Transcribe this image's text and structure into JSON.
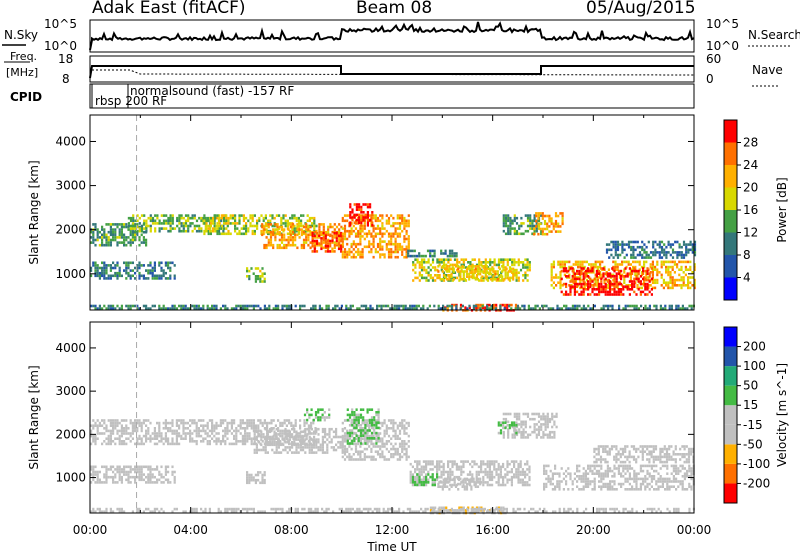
{
  "header": {
    "title": "Adak East (fitACF)",
    "beam": "Beam 08",
    "date": "05/Aug/2015"
  },
  "top_panels": {
    "nsky_label": "N.Sky",
    "nsky_ticks": [
      "10^5",
      "10^0"
    ],
    "nsearch_label": "N.Search",
    "nsearch_ticks": [
      "10^5",
      "10^0"
    ],
    "freq_label": "Freq.",
    "freq_unit": "[MHz]",
    "freq_ticks": [
      "18",
      "8"
    ],
    "nave_label": "Nave",
    "nave_ticks": [
      "60",
      "0"
    ],
    "cpid_label": "CPID",
    "cpid_programs": [
      "rbsp 200 RF",
      "normalsound (fast) -157 RF"
    ]
  },
  "chart_data": [
    {
      "type": "heatmap",
      "title": "",
      "xlabel": "Time UT",
      "ylabel": "Slant Range [km]",
      "x_tick_labels": [
        "00:00",
        "04:00",
        "08:00",
        "12:00",
        "16:00",
        "20:00",
        "00:00"
      ],
      "xlim_hours": [
        0,
        24
      ],
      "y_ticks": [
        1000,
        2000,
        3000,
        4000
      ],
      "ylim": [
        180,
        4600
      ],
      "colorbar": {
        "label": "Power [dB]",
        "ticks": [
          "4",
          "8",
          "12",
          "16",
          "20",
          "24",
          "28"
        ],
        "range": [
          0,
          30
        ],
        "colors": [
          "#0000ff",
          "#2255aa",
          "#33777a",
          "#44a044",
          "#d8d800",
          "#ffb000",
          "#ff7000",
          "#ff0000"
        ]
      },
      "regions": [
        {
          "t0": 0.0,
          "t1": 3.4,
          "r0": 880,
          "r1": 1280,
          "level": 9
        },
        {
          "t0": 0.0,
          "t1": 2.2,
          "r0": 1650,
          "r1": 2150,
          "level": 12
        },
        {
          "t0": 1.5,
          "t1": 5.5,
          "r0": 1950,
          "r1": 2350,
          "level": 14
        },
        {
          "t0": 4.5,
          "t1": 9.0,
          "r0": 1900,
          "r1": 2350,
          "level": 16
        },
        {
          "t0": 6.8,
          "t1": 10.0,
          "r0": 1600,
          "r1": 2150,
          "level": 22
        },
        {
          "t0": 8.8,
          "t1": 10.0,
          "r0": 1500,
          "r1": 1950,
          "level": 26
        },
        {
          "t0": 6.2,
          "t1": 6.9,
          "r0": 850,
          "r1": 1150,
          "level": 15
        },
        {
          "t0": 10.0,
          "t1": 12.7,
          "r0": 1350,
          "r1": 2350,
          "level": 22
        },
        {
          "t0": 10.3,
          "t1": 11.2,
          "r0": 2100,
          "r1": 2600,
          "level": 28
        },
        {
          "t0": 12.6,
          "t1": 14.6,
          "r0": 1400,
          "r1": 1550,
          "level": 10
        },
        {
          "t0": 12.8,
          "t1": 17.5,
          "r0": 850,
          "r1": 1350,
          "level": 17
        },
        {
          "t0": 13.8,
          "t1": 16.8,
          "r0": 850,
          "r1": 1200,
          "level": 19
        },
        {
          "t0": 16.4,
          "t1": 17.9,
          "r0": 1900,
          "r1": 2350,
          "level": 12
        },
        {
          "t0": 17.6,
          "t1": 18.8,
          "r0": 1900,
          "r1": 2400,
          "level": 22
        },
        {
          "t0": 18.3,
          "t1": 24.0,
          "r0": 700,
          "r1": 1300,
          "level": 20
        },
        {
          "t0": 18.7,
          "t1": 22.3,
          "r0": 550,
          "r1": 1150,
          "level": 28
        },
        {
          "t0": 20.5,
          "t1": 24.0,
          "r0": 1350,
          "r1": 1750,
          "level": 8
        },
        {
          "t0": 14.0,
          "t1": 17.0,
          "r0": 200,
          "r1": 320,
          "level": 26
        },
        {
          "t0": 0.0,
          "t1": 24.0,
          "r0": 190,
          "r1": 300,
          "level": 10
        }
      ]
    },
    {
      "type": "heatmap",
      "title": "",
      "xlabel": "Time UT",
      "ylabel": "Slant Range [km]",
      "x_tick_labels": [
        "00:00",
        "04:00",
        "08:00",
        "12:00",
        "16:00",
        "20:00",
        "00:00"
      ],
      "xlim_hours": [
        0,
        24
      ],
      "y_ticks": [
        1000,
        2000,
        3000,
        4000
      ],
      "ylim": [
        180,
        4600
      ],
      "colorbar": {
        "label": "Velocity [m s^-1]",
        "ticks": [
          "-200",
          "-100",
          "-50",
          "-15",
          "15",
          "50",
          "100",
          "200"
        ],
        "range": [
          -250,
          250
        ],
        "colors": [
          "#ff0000",
          "#ff7000",
          "#ffb000",
          "#c0c0c0",
          "#c0c0c0",
          "#44bb44",
          "#22aa77",
          "#2255aa",
          "#0000ff"
        ]
      },
      "regions": [
        {
          "t0": 0.0,
          "t1": 3.4,
          "r0": 880,
          "r1": 1280,
          "level": 0
        },
        {
          "t0": 0.0,
          "t1": 9.0,
          "r0": 1750,
          "r1": 2350,
          "level": 0
        },
        {
          "t0": 6.5,
          "t1": 10.0,
          "r0": 1600,
          "r1": 2150,
          "level": 0
        },
        {
          "t0": 8.5,
          "t1": 9.5,
          "r0": 2300,
          "r1": 2600,
          "level": 30
        },
        {
          "t0": 6.2,
          "t1": 6.9,
          "r0": 850,
          "r1": 1150,
          "level": 0
        },
        {
          "t0": 10.0,
          "t1": 12.7,
          "r0": 1400,
          "r1": 2350,
          "level": 0
        },
        {
          "t0": 10.2,
          "t1": 11.5,
          "r0": 1800,
          "r1": 2600,
          "level": 30
        },
        {
          "t0": 12.7,
          "t1": 17.5,
          "r0": 850,
          "r1": 1400,
          "level": 0
        },
        {
          "t0": 12.7,
          "t1": 13.8,
          "r0": 800,
          "r1": 1100,
          "level": 40
        },
        {
          "t0": 13.8,
          "t1": 15.5,
          "r0": 700,
          "r1": 1000,
          "level": -60
        },
        {
          "t0": 16.4,
          "t1": 18.5,
          "r0": 1900,
          "r1": 2500,
          "level": 0
        },
        {
          "t0": 16.2,
          "t1": 16.9,
          "r0": 2000,
          "r1": 2300,
          "level": 30
        },
        {
          "t0": 18.0,
          "t1": 24.0,
          "r0": 750,
          "r1": 1300,
          "level": 0
        },
        {
          "t0": 20.0,
          "t1": 24.0,
          "r0": 1350,
          "r1": 1750,
          "level": 0
        },
        {
          "t0": 13.5,
          "t1": 16.5,
          "r0": 200,
          "r1": 330,
          "level": -80
        },
        {
          "t0": 0.0,
          "t1": 24.0,
          "r0": 190,
          "r1": 300,
          "level": 0
        }
      ]
    }
  ]
}
